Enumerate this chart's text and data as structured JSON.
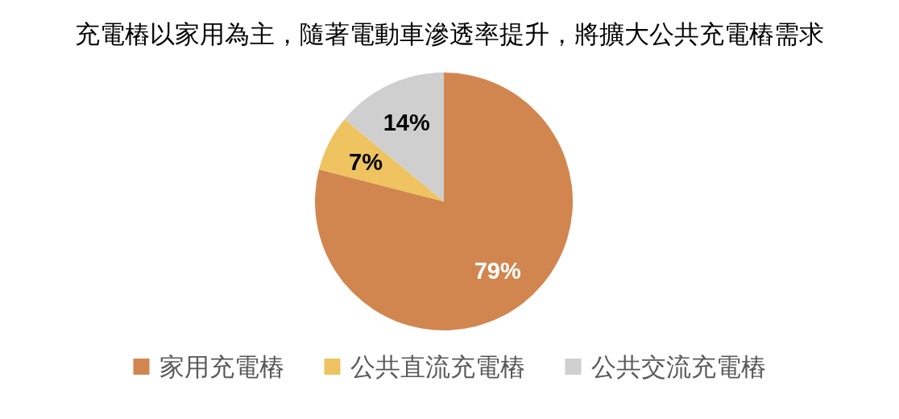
{
  "chart_data": {
    "type": "pie",
    "title": "充電樁以家用為主，隨著電動車滲透率提升，將擴大公共充電樁需求",
    "categories": [
      "家用充電樁",
      "公共直流充電樁",
      "公共交流充電樁"
    ],
    "values": [
      79,
      7,
      14
    ],
    "colors": [
      "#d2864f",
      "#eec360",
      "#d0cfcf"
    ],
    "value_labels": [
      "79%",
      "7%",
      "14%"
    ],
    "legend": "bottom"
  }
}
